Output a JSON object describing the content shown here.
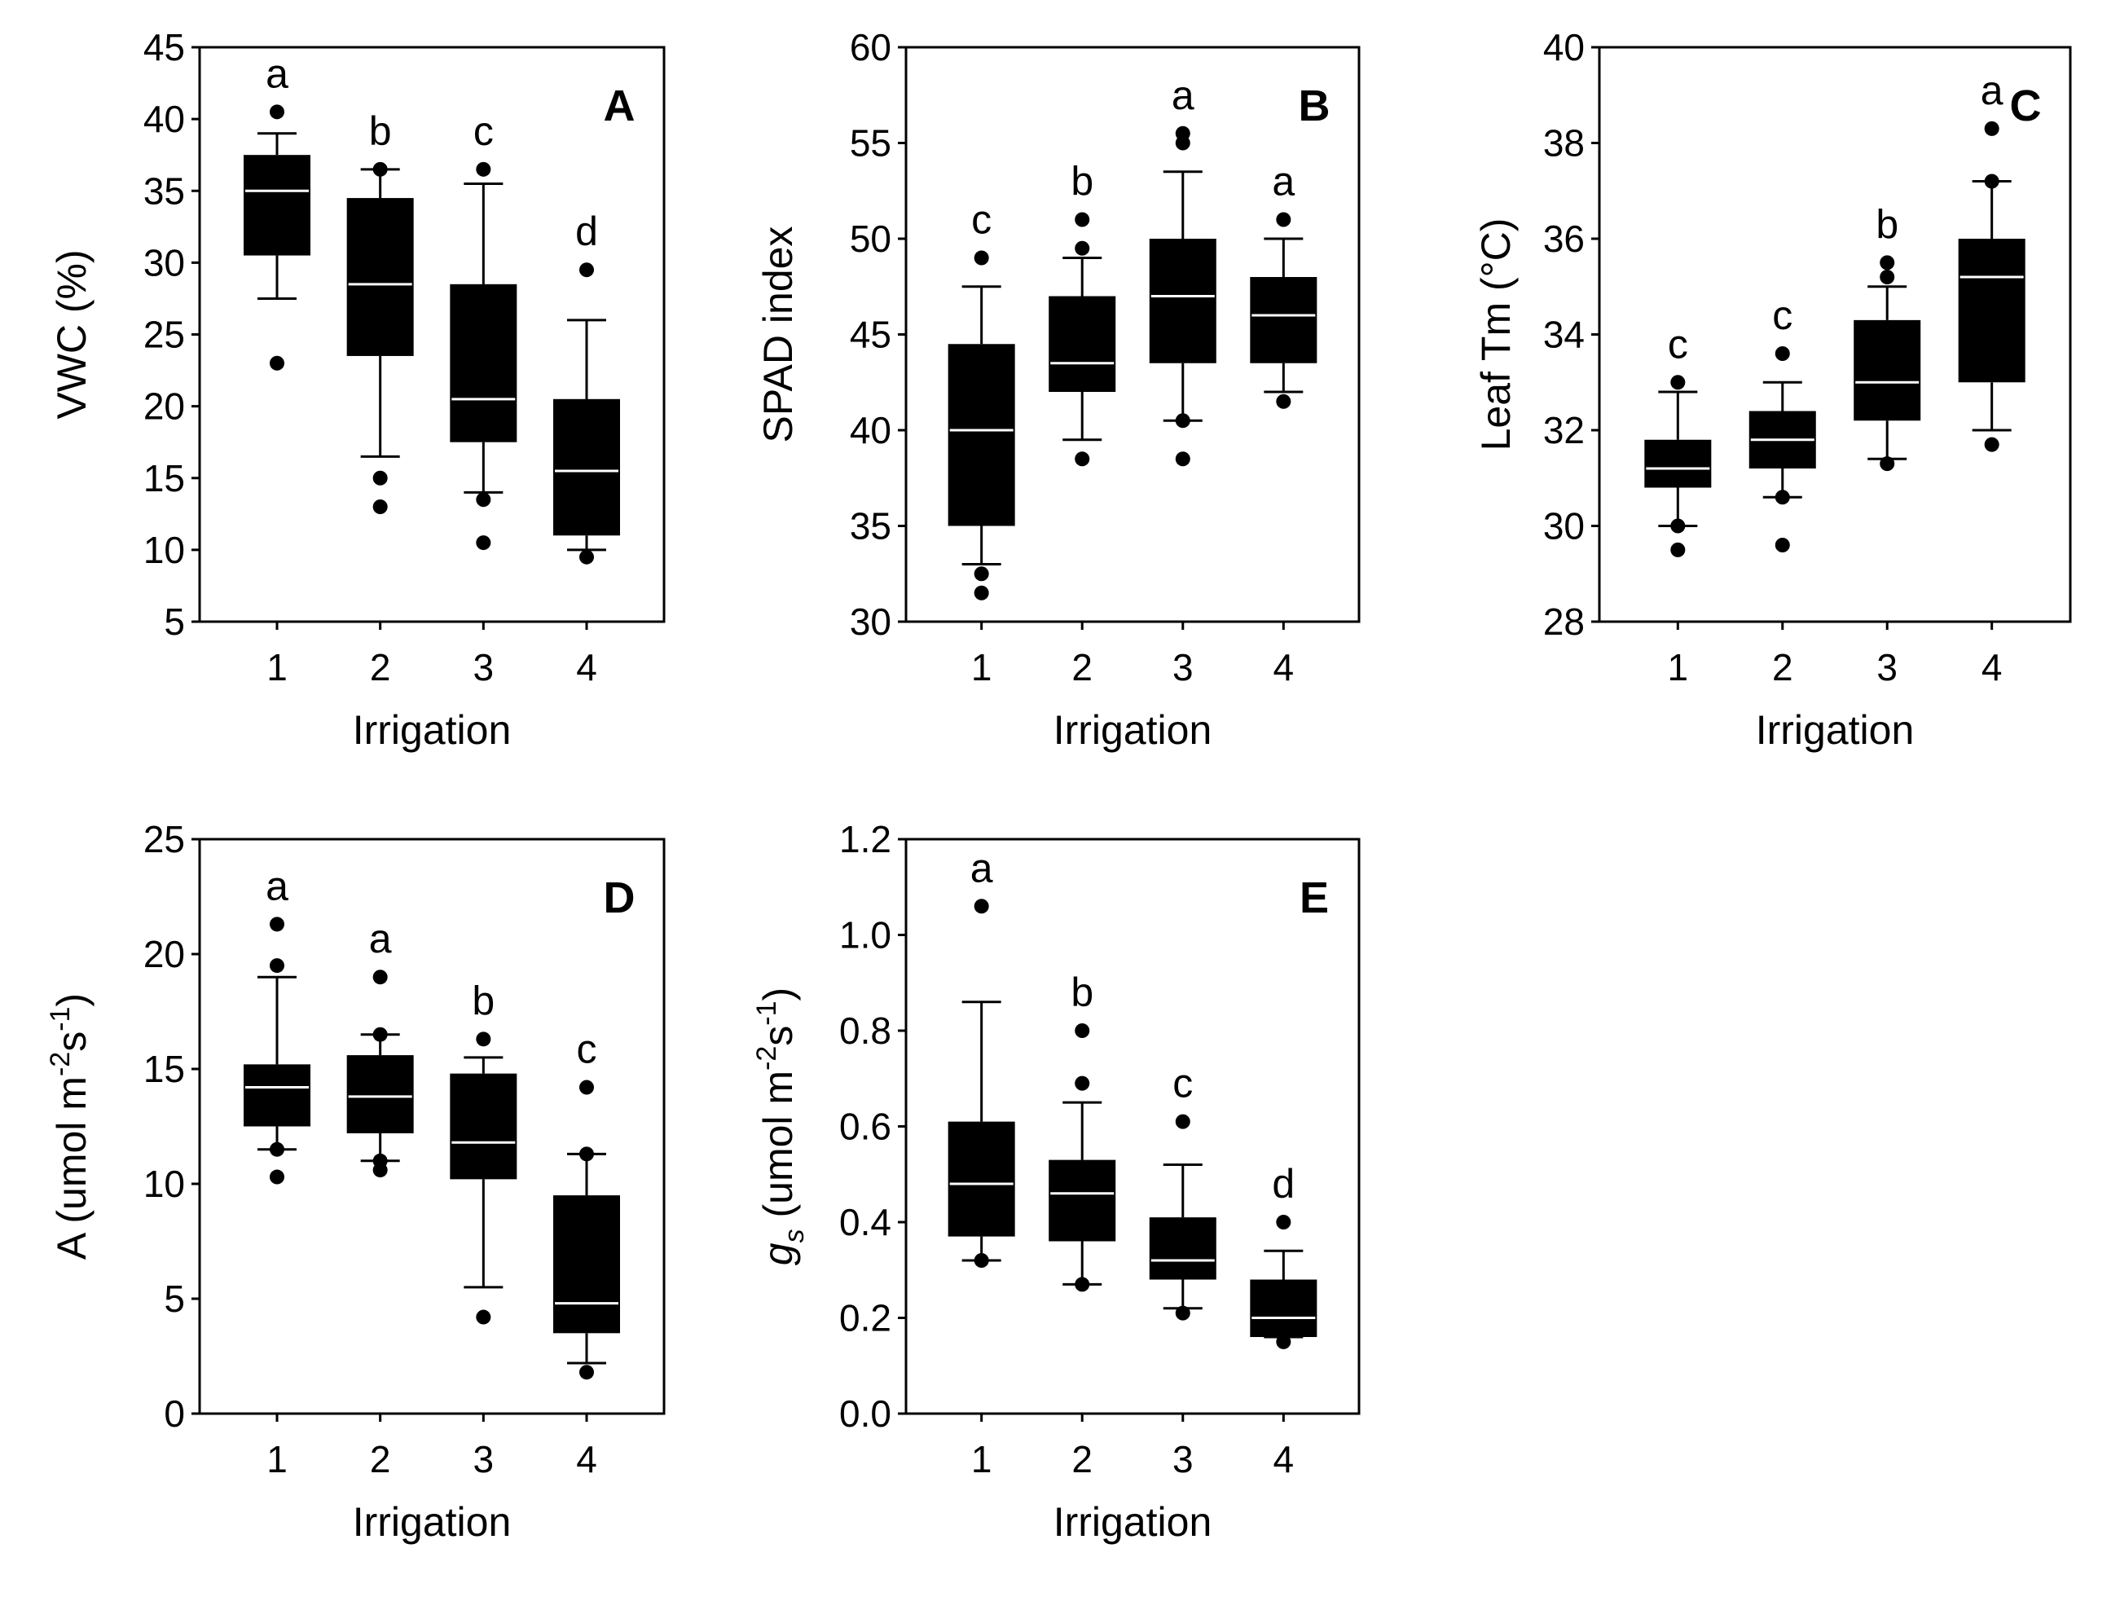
{
  "chart_data": [
    {
      "type": "box",
      "panel_label": "A",
      "xlabel": "Irrigation",
      "ylabel": "VWC (%)",
      "ylim": [
        5,
        45
      ],
      "yticks": [
        "5",
        "10",
        "15",
        "20",
        "25",
        "30",
        "35",
        "40",
        "45"
      ],
      "categories": [
        "1",
        "2",
        "3",
        "4"
      ],
      "boxes": [
        {
          "min": 27.5,
          "q1": 30.5,
          "median": 35,
          "q3": 37.5,
          "max": 39,
          "outliers": [
            40.5,
            23
          ],
          "letter": "a"
        },
        {
          "min": 16.5,
          "q1": 23.5,
          "median": 28.5,
          "q3": 34.5,
          "max": 36.5,
          "outliers": [
            36.5,
            15,
            13
          ],
          "letter": "b"
        },
        {
          "min": 14,
          "q1": 17.5,
          "median": 20.5,
          "q3": 28.5,
          "max": 35.5,
          "outliers": [
            36.5,
            13.5,
            10.5
          ],
          "letter": "c"
        },
        {
          "min": 10,
          "q1": 11,
          "median": 15.5,
          "q3": 20.5,
          "max": 26,
          "outliers": [
            29.5,
            9.5
          ],
          "letter": "d"
        }
      ]
    },
    {
      "type": "box",
      "panel_label": "B",
      "xlabel": "Irrigation",
      "ylabel": "SPAD index",
      "ylim": [
        30,
        60
      ],
      "yticks": [
        "30",
        "35",
        "40",
        "45",
        "50",
        "55",
        "60"
      ],
      "categories": [
        "1",
        "2",
        "3",
        "4"
      ],
      "boxes": [
        {
          "min": 33,
          "q1": 35,
          "median": 40,
          "q3": 44.5,
          "max": 47.5,
          "outliers": [
            49,
            32.5,
            31.5
          ],
          "letter": "c"
        },
        {
          "min": 39.5,
          "q1": 42,
          "median": 43.5,
          "q3": 47,
          "max": 49,
          "outliers": [
            51,
            49.5,
            38.5
          ],
          "letter": "b"
        },
        {
          "min": 40.5,
          "q1": 43.5,
          "median": 47,
          "q3": 50,
          "max": 53.5,
          "outliers": [
            55.5,
            55,
            40.5,
            38.5
          ],
          "letter": "a"
        },
        {
          "min": 42,
          "q1": 43.5,
          "median": 46,
          "q3": 48,
          "max": 50,
          "outliers": [
            51,
            41.5
          ],
          "letter": "a"
        }
      ]
    },
    {
      "type": "box",
      "panel_label": "C",
      "xlabel": "Irrigation",
      "ylabel": "Leaf Tm (°C)",
      "ylim": [
        28,
        40
      ],
      "yticks": [
        "28",
        "30",
        "32",
        "34",
        "36",
        "38",
        "40"
      ],
      "categories": [
        "1",
        "2",
        "3",
        "4"
      ],
      "boxes": [
        {
          "min": 30,
          "q1": 30.8,
          "median": 31.2,
          "q3": 31.8,
          "max": 32.8,
          "outliers": [
            33,
            30,
            29.5
          ],
          "letter": "c"
        },
        {
          "min": 30.6,
          "q1": 31.2,
          "median": 31.8,
          "q3": 32.4,
          "max": 33,
          "outliers": [
            33.6,
            30.6,
            29.6
          ],
          "letter": "c"
        },
        {
          "min": 31.4,
          "q1": 32.2,
          "median": 33,
          "q3": 34.3,
          "max": 35,
          "outliers": [
            35.5,
            35.2,
            31.3
          ],
          "letter": "b"
        },
        {
          "min": 32,
          "q1": 33,
          "median": 35.2,
          "q3": 36,
          "max": 37.2,
          "outliers": [
            38.3,
            37.2,
            31.7
          ],
          "letter": "a"
        }
      ]
    },
    {
      "type": "box",
      "panel_label": "D",
      "xlabel": "Irrigation",
      "ylabel_main": "A (umol m",
      "ylabel_sup1": "-2",
      "ylabel_mid": "s",
      "ylabel_sup2": "-1",
      "ylabel_end": ")",
      "ylim": [
        0,
        25
      ],
      "yticks": [
        "0",
        "5",
        "10",
        "15",
        "20",
        "25"
      ],
      "categories": [
        "1",
        "2",
        "3",
        "4"
      ],
      "boxes": [
        {
          "min": 11.5,
          "q1": 12.5,
          "median": 14.2,
          "q3": 15.2,
          "max": 19,
          "outliers": [
            21.3,
            19.5,
            11.5,
            10.3
          ],
          "letter": "a"
        },
        {
          "min": 11,
          "q1": 12.2,
          "median": 13.8,
          "q3": 15.6,
          "max": 16.5,
          "outliers": [
            19,
            16.5,
            11,
            10.6
          ],
          "letter": "a"
        },
        {
          "min": 5.5,
          "q1": 10.2,
          "median": 11.8,
          "q3": 14.8,
          "max": 15.5,
          "outliers": [
            16.3,
            4.2
          ],
          "letter": "b"
        },
        {
          "min": 2.2,
          "q1": 3.5,
          "median": 4.8,
          "q3": 9.5,
          "max": 11.3,
          "outliers": [
            14.2,
            11.3,
            1.8
          ],
          "letter": "c"
        }
      ]
    },
    {
      "type": "box",
      "panel_label": "E",
      "xlabel": "Irrigation",
      "ylabel_italic": "g",
      "ylabel_sub": "s",
      "ylabel_main": " (umol m",
      "ylabel_sup1": "-2",
      "ylabel_mid": "s",
      "ylabel_sup2": "-1",
      "ylabel_end": ")",
      "ylim": [
        0,
        1.2
      ],
      "yticks": [
        "0.0",
        "0.2",
        "0.4",
        "0.6",
        "0.8",
        "1.0",
        "1.2"
      ],
      "categories": [
        "1",
        "2",
        "3",
        "4"
      ],
      "boxes": [
        {
          "min": 0.32,
          "q1": 0.37,
          "median": 0.48,
          "q3": 0.61,
          "max": 0.86,
          "outliers": [
            1.06,
            0.32
          ],
          "letter": "a"
        },
        {
          "min": 0.27,
          "q1": 0.36,
          "median": 0.46,
          "q3": 0.53,
          "max": 0.65,
          "outliers": [
            0.8,
            0.69,
            0.27
          ],
          "letter": "b"
        },
        {
          "min": 0.22,
          "q1": 0.28,
          "median": 0.32,
          "q3": 0.41,
          "max": 0.52,
          "outliers": [
            0.61,
            0.21
          ],
          "letter": "c"
        },
        {
          "min": 0.16,
          "q1": 0.16,
          "median": 0.2,
          "q3": 0.28,
          "max": 0.34,
          "outliers": [
            0.4,
            0.15
          ],
          "letter": "d"
        }
      ]
    }
  ]
}
